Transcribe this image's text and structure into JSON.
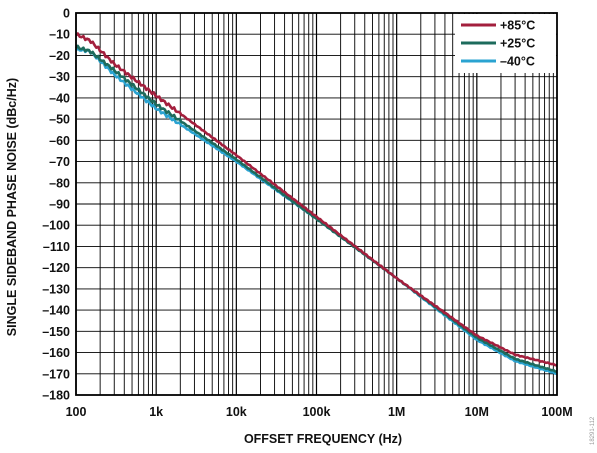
{
  "chart_data": {
    "type": "line",
    "xlabel": "OFFSET FREQUENCY (Hz)",
    "ylabel": "SINGLE SIDEBAND PHASE NOISE (dBc/Hz)",
    "xscale": "log",
    "xlim": [
      100,
      100000000
    ],
    "ylim": [
      -180,
      0
    ],
    "x_ticks": [
      {
        "value": 100,
        "label": "100"
      },
      {
        "value": 1000,
        "label": "1k"
      },
      {
        "value": 10000,
        "label": "10k"
      },
      {
        "value": 100000,
        "label": "100k"
      },
      {
        "value": 1000000,
        "label": "1M"
      },
      {
        "value": 10000000,
        "label": "10M"
      },
      {
        "value": 100000000,
        "label": "100M"
      }
    ],
    "y_ticks": [
      {
        "value": 0,
        "label": "0"
      },
      {
        "value": -10,
        "label": "–10"
      },
      {
        "value": -20,
        "label": "–20"
      },
      {
        "value": -30,
        "label": "–30"
      },
      {
        "value": -40,
        "label": "–40"
      },
      {
        "value": -50,
        "label": "–50"
      },
      {
        "value": -60,
        "label": "–60"
      },
      {
        "value": -70,
        "label": "–70"
      },
      {
        "value": -80,
        "label": "–80"
      },
      {
        "value": -90,
        "label": "–90"
      },
      {
        "value": -100,
        "label": "–100"
      },
      {
        "value": -110,
        "label": "–110"
      },
      {
        "value": -120,
        "label": "–120"
      },
      {
        "value": -130,
        "label": "–130"
      },
      {
        "value": -140,
        "label": "–140"
      },
      {
        "value": -150,
        "label": "–150"
      },
      {
        "value": -160,
        "label": "–160"
      },
      {
        "value": -170,
        "label": "–170"
      },
      {
        "value": -180,
        "label": "–180"
      }
    ],
    "grid": true,
    "legend_position": "top-right",
    "series": [
      {
        "name": "+85°C",
        "color": "#a31f3d",
        "points": [
          [
            100,
            -10
          ],
          [
            150,
            -13
          ],
          [
            300,
            -24
          ],
          [
            1000,
            -39
          ],
          [
            10000,
            -67
          ],
          [
            100000,
            -96
          ],
          [
            1000000,
            -125
          ],
          [
            10000000,
            -152
          ],
          [
            30000000,
            -161
          ],
          [
            100000000,
            -166
          ]
        ]
      },
      {
        "name": "+25°C",
        "color": "#1d6b5c",
        "points": [
          [
            100,
            -16
          ],
          [
            150,
            -18
          ],
          [
            300,
            -27
          ],
          [
            1000,
            -43
          ],
          [
            10000,
            -69
          ],
          [
            100000,
            -97
          ],
          [
            1000000,
            -125
          ],
          [
            10000000,
            -153
          ],
          [
            30000000,
            -163
          ],
          [
            100000000,
            -169
          ]
        ]
      },
      {
        "name": "–40°C",
        "color": "#2aa3d1",
        "points": [
          [
            100,
            -17
          ],
          [
            150,
            -18
          ],
          [
            300,
            -29
          ],
          [
            1000,
            -45
          ],
          [
            10000,
            -70
          ],
          [
            100000,
            -97
          ],
          [
            1000000,
            -125
          ],
          [
            10000000,
            -154
          ],
          [
            30000000,
            -164
          ],
          [
            100000000,
            -170
          ]
        ]
      }
    ]
  },
  "watermark": "18291-112"
}
